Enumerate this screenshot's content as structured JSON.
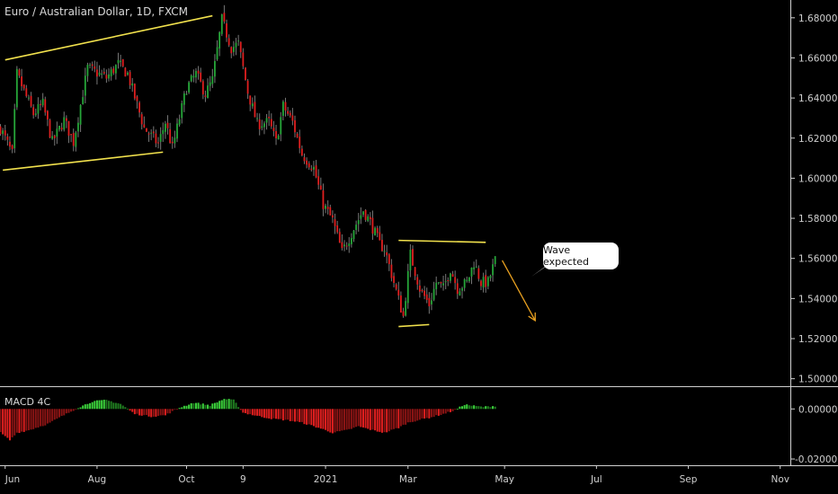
{
  "title": "Euro / Australian Dollar, 1D, FXCM",
  "indicator_title": "MACD 4C",
  "annotation_text": "Wave expected",
  "colors": {
    "background": "#000000",
    "up": "#26a639",
    "down": "#e01f1f",
    "wick": "#777777",
    "drawing": "#f1e14d",
    "axis_text": "#cfcfcf",
    "separator": "#d0d0d0"
  },
  "chart_data": [
    {
      "type": "candlestick",
      "title": "Euro / Australian Dollar, 1D, FXCM",
      "x_tick_labels": [
        "Jun",
        "Aug",
        "Oct",
        "9",
        "2021",
        "Mar",
        "May",
        "Jul",
        "Sep",
        "Nov"
      ],
      "y_tick_labels": [
        "1.68000",
        "1.66000",
        "1.64000",
        "1.62000",
        "1.60000",
        "1.58000",
        "1.56000",
        "1.54000",
        "1.52000",
        "1.50000"
      ],
      "y_ticks": [
        1.68,
        1.66,
        1.64,
        1.62,
        1.6,
        1.58,
        1.56,
        1.54,
        1.52,
        1.5
      ],
      "ylim": [
        1.4985,
        1.6835
      ],
      "anchors": [
        [
          0,
          1.625
        ],
        [
          5,
          1.612
        ],
        [
          7,
          1.652
        ],
        [
          14,
          1.632
        ],
        [
          18,
          1.637
        ],
        [
          22,
          1.618
        ],
        [
          27,
          1.629
        ],
        [
          31,
          1.618
        ],
        [
          37,
          1.655
        ],
        [
          45,
          1.65
        ],
        [
          50,
          1.657
        ],
        [
          54,
          1.652
        ],
        [
          61,
          1.625
        ],
        [
          67,
          1.617
        ],
        [
          70,
          1.628
        ],
        [
          73,
          1.615
        ],
        [
          79,
          1.645
        ],
        [
          83,
          1.652
        ],
        [
          87,
          1.642
        ],
        [
          90,
          1.649
        ],
        [
          94,
          1.679
        ],
        [
          98,
          1.665
        ],
        [
          101,
          1.667
        ],
        [
          105,
          1.643
        ],
        [
          109,
          1.627
        ],
        [
          114,
          1.628
        ],
        [
          117,
          1.618
        ],
        [
          120,
          1.636
        ],
        [
          124,
          1.628
        ],
        [
          128,
          1.612
        ],
        [
          133,
          1.605
        ],
        [
          137,
          1.587
        ],
        [
          141,
          1.579
        ],
        [
          145,
          1.563
        ],
        [
          150,
          1.575
        ],
        [
          154,
          1.584
        ],
        [
          157,
          1.578
        ],
        [
          161,
          1.567
        ],
        [
          163,
          1.565
        ],
        [
          167,
          1.548
        ],
        [
          171,
          1.531
        ],
        [
          174,
          1.562
        ],
        [
          178,
          1.545
        ],
        [
          182,
          1.537
        ],
        [
          185,
          1.548
        ],
        [
          188,
          1.545
        ],
        [
          191,
          1.555
        ],
        [
          194,
          1.545
        ],
        [
          198,
          1.548
        ],
        [
          201,
          1.558
        ],
        [
          204,
          1.548
        ],
        [
          207,
          1.548
        ],
        [
          210,
          1.559
        ]
      ],
      "macd_anchors": [
        [
          0,
          -0.0095
        ],
        [
          4,
          -0.0125
        ],
        [
          7,
          -0.0095
        ],
        [
          12,
          -0.0085
        ],
        [
          20,
          -0.006
        ],
        [
          26,
          -0.003
        ],
        [
          33,
          0.0005
        ],
        [
          39,
          0.003
        ],
        [
          45,
          0.0035
        ],
        [
          51,
          0.002
        ],
        [
          57,
          -0.002
        ],
        [
          64,
          -0.003
        ],
        [
          70,
          -0.0025
        ],
        [
          76,
          0.0005
        ],
        [
          82,
          0.0025
        ],
        [
          89,
          0.0015
        ],
        [
          95,
          0.004
        ],
        [
          99,
          0.0035
        ],
        [
          103,
          -0.0015
        ],
        [
          110,
          -0.003
        ],
        [
          116,
          -0.004
        ],
        [
          122,
          -0.0045
        ],
        [
          128,
          -0.0055
        ],
        [
          135,
          -0.0075
        ],
        [
          141,
          -0.0095
        ],
        [
          147,
          -0.0085
        ],
        [
          152,
          -0.007
        ],
        [
          158,
          -0.0085
        ],
        [
          163,
          -0.0095
        ],
        [
          169,
          -0.0075
        ],
        [
          173,
          -0.0055
        ],
        [
          177,
          -0.0045
        ],
        [
          182,
          -0.0035
        ],
        [
          188,
          -0.002
        ],
        [
          193,
          -0.0005
        ],
        [
          197,
          0.0018
        ],
        [
          201,
          0.0012
        ],
        [
          205,
          0.0008
        ],
        [
          210,
          0.0012
        ]
      ],
      "indicator": {
        "name": "MACD 4C",
        "y_tick_labels": [
          "0.00000",
          "-0.02000"
        ],
        "y_ticks": [
          0.0,
          -0.02
        ],
        "ylim": [
          -0.0225,
          0.008
        ]
      },
      "drawings": [
        {
          "kind": "trendline",
          "from": [
            2,
            1.659
          ],
          "to": [
            90,
            1.681
          ]
        },
        {
          "kind": "trendline",
          "from": [
            1,
            1.604
          ],
          "to": [
            69,
            1.613
          ]
        },
        {
          "kind": "trendline",
          "from": [
            169,
            1.569
          ],
          "to": [
            206,
            1.568
          ]
        },
        {
          "kind": "trendline",
          "from": [
            169,
            1.526
          ],
          "to": [
            182,
            1.527
          ]
        },
        {
          "kind": "arrow",
          "from": [
            213,
            1.559
          ],
          "to": [
            227,
            1.529
          ]
        }
      ]
    }
  ]
}
